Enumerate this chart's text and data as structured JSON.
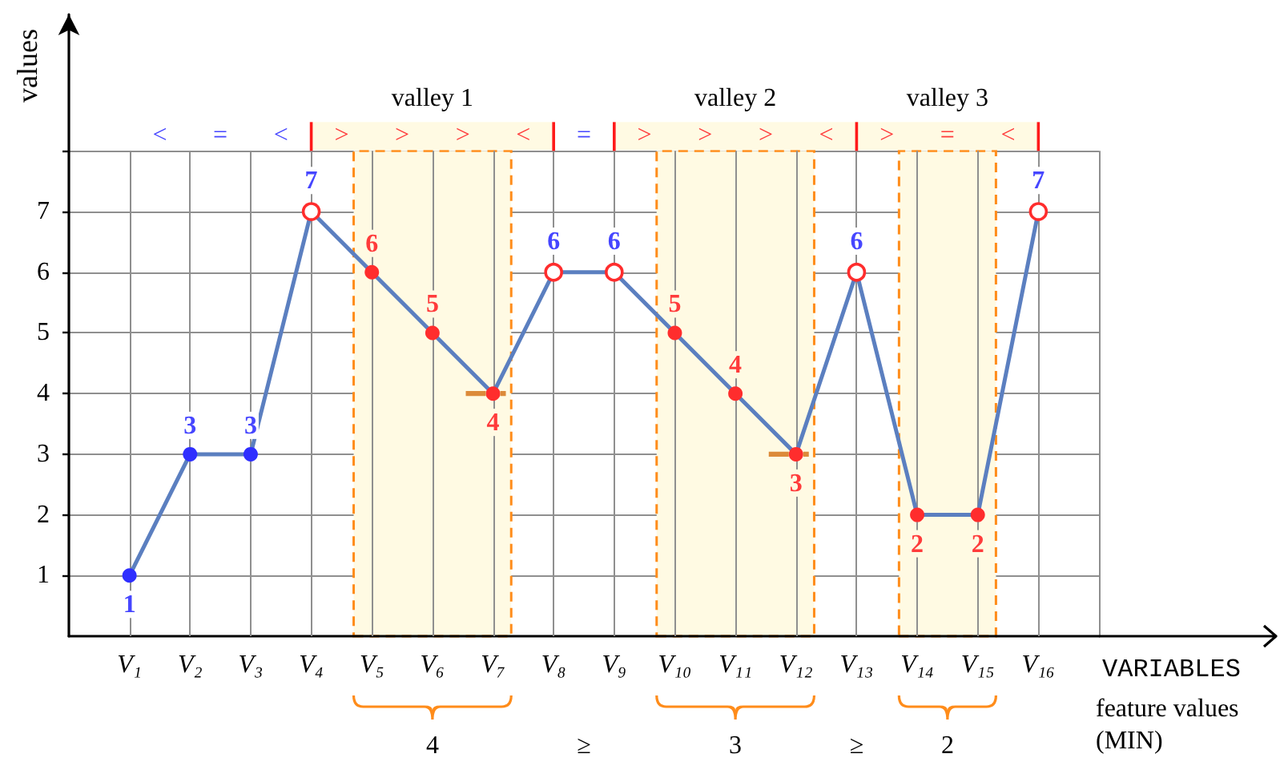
{
  "chart_data": {
    "type": "line",
    "xlabel": "VARIABLES",
    "ylabel": "values",
    "categories": [
      "V₁",
      "V₂",
      "V₃",
      "V₄",
      "V₅",
      "V₆",
      "V₇",
      "V₈",
      "V₉",
      "V₁₀",
      "V₁₁",
      "V₁₂",
      "V₁₃",
      "V₁₄",
      "V₁₅",
      "V₁₆"
    ],
    "ylim": [
      0,
      10.25
    ],
    "yticks": [
      1,
      2,
      3,
      4,
      5,
      6,
      7,
      {
        "value": 8,
        "label": null
      }
    ],
    "grid": true,
    "marker": "circle",
    "series": [
      {
        "color": "#5b7fc0",
        "colors": [
          "#2f2fff",
          "#2f2fff",
          "#2f2fff",
          "#ff2d2d",
          "#ff2d2d",
          "#ff2d2d",
          "#ff2d2d",
          "#ff2d2d",
          "#ff2d2d",
          "#ff2d2d",
          "#ff2d2d",
          "#ff2d2d",
          "#ff2d2d",
          "#ff2d2d",
          "#ff2d2d",
          "#ff2d2d"
        ],
        "values": [
          1,
          3,
          3,
          7,
          6,
          5,
          4,
          6,
          6,
          5,
          4,
          3,
          6,
          2,
          2,
          7
        ],
        "value_labels": [
          "1",
          "3",
          "3",
          "7",
          "6",
          "5",
          "4",
          "6",
          "6",
          "5",
          "4",
          "3",
          "6",
          "2",
          "2",
          "7"
        ]
      }
    ],
    "bands": [
      {
        "axis": "x",
        "from": "V₅",
        "to": "V₇",
        "label": "valley 1",
        "color": "#fffae3"
      },
      {
        "axis": "x",
        "from": "V₁₀",
        "to": "V₁₂",
        "label": "valley 2",
        "color": "#fffae3"
      },
      {
        "axis": "x",
        "from": "V₁₄",
        "to": "V₁₅",
        "label": "valley 3",
        "color": "#fffae3"
      }
    ],
    "annotations": [
      "<",
      "=",
      "<",
      ">",
      ">",
      ">",
      "<",
      "=",
      ">",
      ">",
      ">",
      "<",
      ">",
      "=",
      "<",
      "4",
      "≥",
      "3",
      "≥",
      "2",
      "feature values (MIN)"
    ]
  }
}
